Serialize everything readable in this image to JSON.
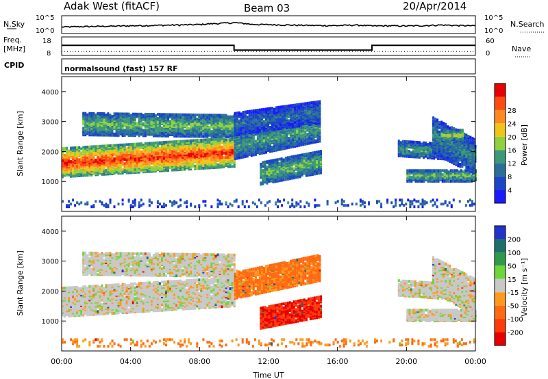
{
  "header": {
    "station": "Adak West (fitACF)",
    "beam": "Beam 03",
    "date": "20/Apr/2014"
  },
  "noise_panel": {
    "left_label": "N.Sky",
    "right_label": "N.Search",
    "left_ticks": [
      "10^5",
      "10^0"
    ],
    "right_ticks": [
      "10^5",
      "10^0"
    ]
  },
  "freq_panel": {
    "left_label_top": "Freq.",
    "left_label_bottom": "[MHz]",
    "left_ticks": [
      "18",
      "8"
    ],
    "right_label": "Nave",
    "right_ticks": [
      "60",
      "0"
    ]
  },
  "cpid_panel": {
    "label": "CPID",
    "mode_text": "normalsound (fast) 157 RF"
  },
  "x_axis": {
    "label": "Time UT",
    "ticks": [
      "00:00",
      "04:00",
      "08:00",
      "12:00",
      "16:00",
      "20:00",
      "00:00"
    ]
  },
  "chart_data": [
    {
      "type": "line",
      "title": "N.Sky / N.Search",
      "yscale": "log",
      "ylim": [
        1,
        100000
      ],
      "x_hours": [
        0,
        1,
        2,
        3,
        4,
        5,
        6,
        7,
        8,
        9,
        10,
        11,
        12,
        13,
        14,
        15,
        16,
        17,
        18,
        19,
        20,
        21,
        22,
        23,
        24
      ],
      "series": [
        {
          "name": "N.Sky",
          "values": [
            30,
            40,
            50,
            60,
            80,
            100,
            130,
            160,
            220,
            500,
            900,
            250,
            200,
            150,
            120,
            100,
            90,
            150,
            70,
            80,
            70,
            90,
            150,
            100,
            80
          ]
        }
      ]
    },
    {
      "type": "line",
      "title": "Freq. / Nave",
      "x_hours": [
        0,
        10,
        10,
        18,
        18,
        24
      ],
      "series": [
        {
          "name": "Freq.",
          "values": [
            13.5,
            13.5,
            10.5,
            10.5,
            13.5,
            13.5
          ]
        },
        {
          "name": "Nave",
          "values": [
            10,
            10,
            10,
            10,
            10,
            10
          ]
        }
      ],
      "ylim_left": [
        8,
        18
      ],
      "ylim_right": [
        0,
        60
      ]
    },
    {
      "type": "heatmap",
      "title": "Power",
      "ylabel": "Slant Range [km]",
      "xlabel": "Time UT",
      "xlim": [
        0,
        24
      ],
      "ylim": [
        0,
        4500
      ],
      "yticks": [
        1000,
        2000,
        3000,
        4000
      ],
      "colorbar_label": "Power [dB]",
      "colorbar_ticks": [
        4,
        8,
        12,
        16,
        20,
        24,
        28
      ],
      "colorbar_range": [
        0,
        30
      ],
      "colors": [
        "#1a1aff",
        "#1a46c8",
        "#2a6f9a",
        "#3c9a78",
        "#8fd13f",
        "#f0c419",
        "#ff8a1f",
        "#ff4a12",
        "#e60000"
      ],
      "bands": [
        {
          "t0": 1.2,
          "t1": 10,
          "r0": 2600,
          "r1": 3350,
          "slope": -8,
          "peak": 14
        },
        {
          "t0": 0,
          "t1": 10,
          "r0": 1200,
          "r1": 2150,
          "slope": 35,
          "peak": 27
        },
        {
          "t0": 10,
          "t1": 15,
          "r0": 1800,
          "r1": 2700,
          "slope": 120,
          "peak": 12
        },
        {
          "t0": 10,
          "t1": 15,
          "r0": 2600,
          "r1": 3350,
          "slope": 80,
          "peak": 8
        },
        {
          "t0": 11.5,
          "t1": 15,
          "r0": 950,
          "r1": 1700,
          "slope": 110,
          "peak": 14
        },
        {
          "t0": 19.5,
          "t1": 24,
          "r0": 1900,
          "r1": 2400,
          "slope": -40,
          "peak": 12
        },
        {
          "t0": 20,
          "t1": 24,
          "r0": 1050,
          "r1": 1450,
          "slope": 0,
          "peak": 14
        },
        {
          "t0": 21.5,
          "t1": 24,
          "r0": 2000,
          "r1": 3200,
          "slope": -300,
          "peak": 10
        },
        {
          "t0": 22,
          "t1": 23.3,
          "r0": 2400,
          "r1": 2800,
          "slope": 0,
          "peak": 16
        },
        {
          "t0": 0,
          "t1": 24,
          "r0": 200,
          "r1": 450,
          "slope": 0,
          "peak": 8
        }
      ]
    },
    {
      "type": "heatmap",
      "title": "Velocity",
      "ylabel": "Slant Range [km]",
      "xlabel": "Time UT",
      "xlim": [
        0,
        24
      ],
      "ylim": [
        0,
        4500
      ],
      "yticks": [
        1000,
        2000,
        3000,
        4000
      ],
      "colorbar_label": "Velocity [m s⁻¹]",
      "colorbar_ticks": [
        200,
        100,
        50,
        15,
        -15,
        -50,
        -100,
        -200
      ],
      "colors": [
        "#2233cc",
        "#1e6e6e",
        "#2e9a4a",
        "#6fd63a",
        "#c8c8c8",
        "#ff9a1f",
        "#ff6a12",
        "#ff3a0a",
        "#e60000"
      ],
      "bands": [
        {
          "t0": 1.2,
          "t1": 10,
          "r0": 2600,
          "r1": 3350,
          "slope": -8,
          "vel": 0
        },
        {
          "t0": 0,
          "t1": 10,
          "r0": 1200,
          "r1": 2150,
          "slope": 35,
          "vel": 0
        },
        {
          "t0": 10,
          "t1": 15,
          "r0": 1800,
          "r1": 2700,
          "slope": 120,
          "vel": -60
        },
        {
          "t0": 11.5,
          "t1": 15,
          "r0": 800,
          "r1": 1500,
          "slope": 110,
          "vel": -150
        },
        {
          "t0": 19.5,
          "t1": 24,
          "r0": 1900,
          "r1": 2400,
          "slope": -40,
          "vel": 0
        },
        {
          "t0": 20,
          "t1": 24,
          "r0": 1050,
          "r1": 1450,
          "slope": 0,
          "vel": 0
        },
        {
          "t0": 21.5,
          "t1": 24,
          "r0": 2000,
          "r1": 3200,
          "slope": -300,
          "vel": 0
        },
        {
          "t0": 0,
          "t1": 24,
          "r0": 200,
          "r1": 450,
          "slope": 0,
          "vel": -50
        }
      ]
    }
  ],
  "power_cbar": {
    "label": "Power [dB]",
    "ticks": [
      "4",
      "8",
      "12",
      "16",
      "20",
      "24",
      "28"
    ]
  },
  "vel_cbar": {
    "label": "Velocity [m s⁻¹]",
    "ticks": [
      "200",
      "100",
      "50",
      "15",
      "-15",
      "-50",
      "-100",
      "-200"
    ]
  },
  "y_axis_label": "Slant Range [km]",
  "y_ticks": [
    "4000",
    "3000",
    "2000",
    "1000"
  ]
}
